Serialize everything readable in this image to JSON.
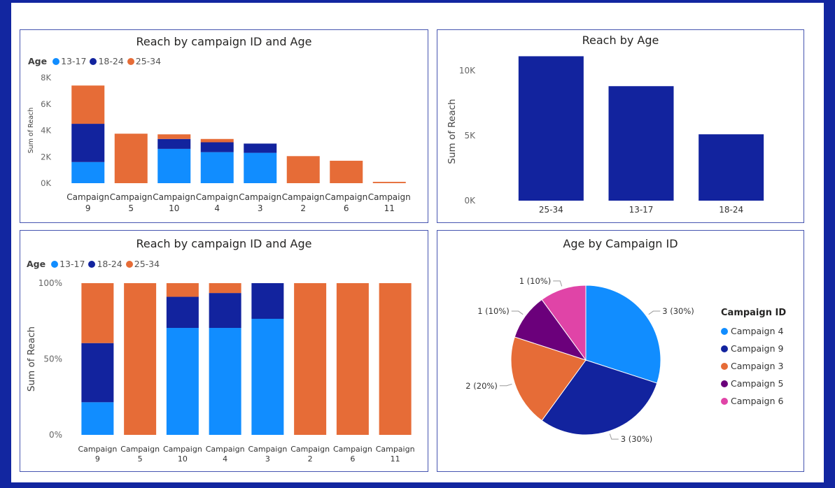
{
  "colors": {
    "c13_17": "#118dff",
    "c18_24": "#12239e",
    "c25_34": "#e66c37"
  },
  "panels": {
    "p1": {
      "title": "Reach by campaign ID and Age",
      "legend_title": "Age",
      "ylabel": "Sum of Reach"
    },
    "p2": {
      "title": "Reach by Age",
      "ylabel": "Sum of Reach"
    },
    "p3": {
      "title": "Reach by campaign ID and Age",
      "legend_title": "Age",
      "ylabel": "Sum of Reach"
    },
    "p4": {
      "title": "Age by Campaign ID",
      "legend_title": "Campaign ID"
    }
  },
  "age_legend": [
    {
      "label": "13-17",
      "color": "#118dff"
    },
    {
      "label": "18-24",
      "color": "#12239e"
    },
    {
      "label": "25-34",
      "color": "#e66c37"
    }
  ],
  "chart_data": [
    {
      "type": "bar",
      "stacked": true,
      "title": "Reach by campaign ID and Age",
      "xlabel": "",
      "ylabel": "Sum of Reach",
      "legend_title": "Age",
      "categories": [
        [
          "Campaign",
          "9"
        ],
        [
          "Campaign",
          "5"
        ],
        [
          "Campaign",
          "10"
        ],
        [
          "Campaign",
          "4"
        ],
        [
          "Campaign",
          "3"
        ],
        [
          "Campaign",
          "2"
        ],
        [
          "Campaign",
          "6"
        ],
        [
          "Campaign",
          "11"
        ]
      ],
      "ylim": [
        0,
        8000
      ],
      "yticks": [
        0,
        2000,
        4000,
        6000,
        8000
      ],
      "ytick_labels": [
        "0K",
        "2K",
        "4K",
        "6K",
        "8K"
      ],
      "series": [
        {
          "name": "13-17",
          "color": "#118dff",
          "values": [
            1600,
            0,
            2600,
            2350,
            2300,
            0,
            0,
            0
          ]
        },
        {
          "name": "18-24",
          "color": "#12239e",
          "values": [
            2900,
            0,
            750,
            750,
            700,
            0,
            0,
            0
          ]
        },
        {
          "name": "25-34",
          "color": "#e66c37",
          "values": [
            2900,
            3750,
            350,
            250,
            0,
            2050,
            1700,
            100
          ]
        }
      ]
    },
    {
      "type": "bar",
      "title": "Reach by Age",
      "xlabel": "",
      "ylabel": "Sum of Reach",
      "categories": [
        "25-34",
        "13-17",
        "18-24"
      ],
      "values": [
        11100,
        8800,
        5100
      ],
      "color": "#12239e",
      "ylim": [
        0,
        11500
      ],
      "yticks": [
        0,
        5000,
        10000
      ],
      "ytick_labels": [
        "0K",
        "5K",
        "10K"
      ]
    },
    {
      "type": "bar",
      "stacked": true,
      "percent": true,
      "title": "Reach by campaign ID and Age",
      "xlabel": "",
      "ylabel": "Sum of Reach",
      "legend_title": "Age",
      "categories": [
        [
          "Campaign",
          "9"
        ],
        [
          "Campaign",
          "5"
        ],
        [
          "Campaign",
          "10"
        ],
        [
          "Campaign",
          "4"
        ],
        [
          "Campaign",
          "3"
        ],
        [
          "Campaign",
          "2"
        ],
        [
          "Campaign",
          "6"
        ],
        [
          "Campaign",
          "11"
        ]
      ],
      "ylim": [
        0,
        100
      ],
      "yticks": [
        0,
        50,
        100
      ],
      "ytick_labels": [
        "0%",
        "50%",
        "100%"
      ],
      "series": [
        {
          "name": "13-17",
          "color": "#118dff",
          "values": [
            21.5,
            0,
            70.5,
            70.5,
            76.5,
            0,
            0,
            0
          ]
        },
        {
          "name": "18-24",
          "color": "#12239e",
          "values": [
            39,
            0,
            20.5,
            23,
            23.5,
            0,
            0,
            0
          ]
        },
        {
          "name": "25-34",
          "color": "#e66c37",
          "values": [
            39.5,
            100,
            9,
            6.5,
            0,
            100,
            100,
            100
          ]
        }
      ]
    },
    {
      "type": "pie",
      "title": "Age by Campaign ID",
      "legend_title": "Campaign ID",
      "slices": [
        {
          "name": "Campaign 4",
          "value": 3,
          "label": "3 (30%)",
          "color": "#118dff"
        },
        {
          "name": "Campaign 9",
          "value": 3,
          "label": "3 (30%)",
          "color": "#12239e"
        },
        {
          "name": "Campaign 3",
          "value": 2,
          "label": "2 (20%)",
          "color": "#e66c37"
        },
        {
          "name": "Campaign 5",
          "value": 1,
          "label": "1 (10%)",
          "color": "#6b007b"
        },
        {
          "name": "Campaign 6",
          "value": 1,
          "label": "1 (10%)",
          "color": "#e044a7"
        }
      ]
    }
  ]
}
